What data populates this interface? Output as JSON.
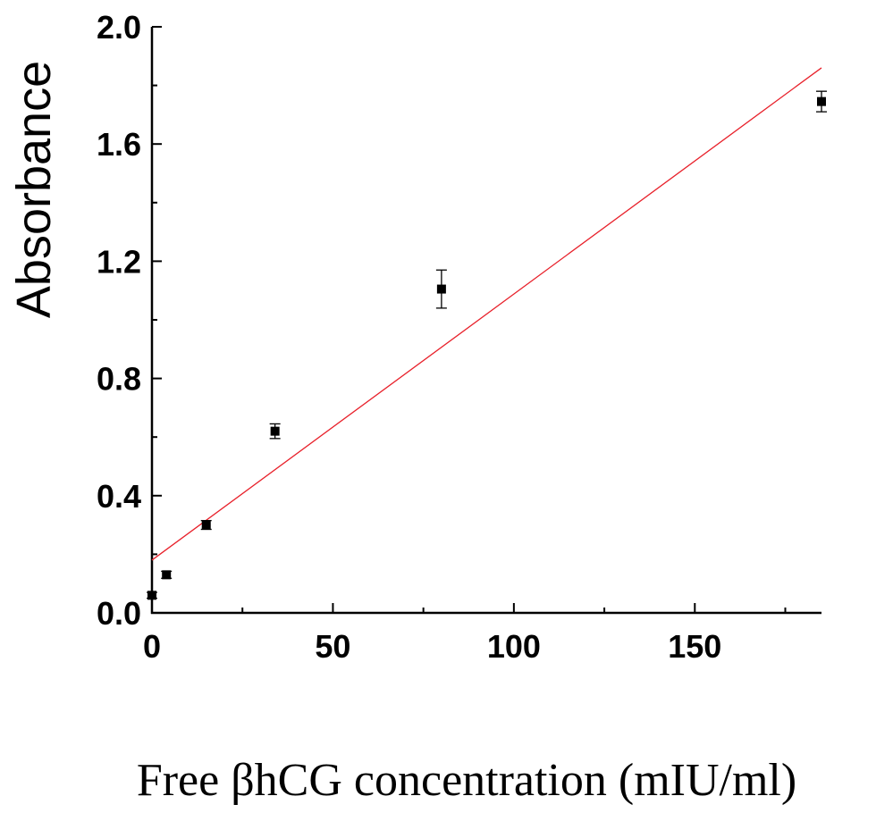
{
  "chart_data": {
    "type": "scatter",
    "title": "",
    "xlabel": "Free βhCG concentration (mIU/ml)",
    "ylabel": "Absorbance",
    "xlim": [
      0,
      185
    ],
    "ylim": [
      0,
      2.0
    ],
    "x_ticks": [
      0,
      50,
      100,
      150
    ],
    "x_tick_labels": [
      "0",
      "50",
      "100",
      "150"
    ],
    "y_ticks": [
      0.0,
      0.4,
      0.8,
      1.2,
      1.6,
      2.0
    ],
    "y_tick_labels": [
      "0.0",
      "0.4",
      "0.8",
      "1.2",
      "1.6",
      "2.0"
    ],
    "grid": false,
    "legend": "none",
    "points": [
      {
        "x": 0,
        "y": 0.06,
        "err": 0.01
      },
      {
        "x": 4,
        "y": 0.13,
        "err": 0.012
      },
      {
        "x": 15,
        "y": 0.3,
        "err": 0.015
      },
      {
        "x": 34,
        "y": 0.62,
        "err": 0.025
      },
      {
        "x": 80,
        "y": 1.105,
        "err": 0.065
      },
      {
        "x": 185,
        "y": 1.745,
        "err": 0.035
      }
    ],
    "fit_line": {
      "x": [
        0,
        185
      ],
      "y": [
        0.18,
        1.86
      ]
    },
    "marker_color": "#000000",
    "fit_color": "#e8202a"
  }
}
